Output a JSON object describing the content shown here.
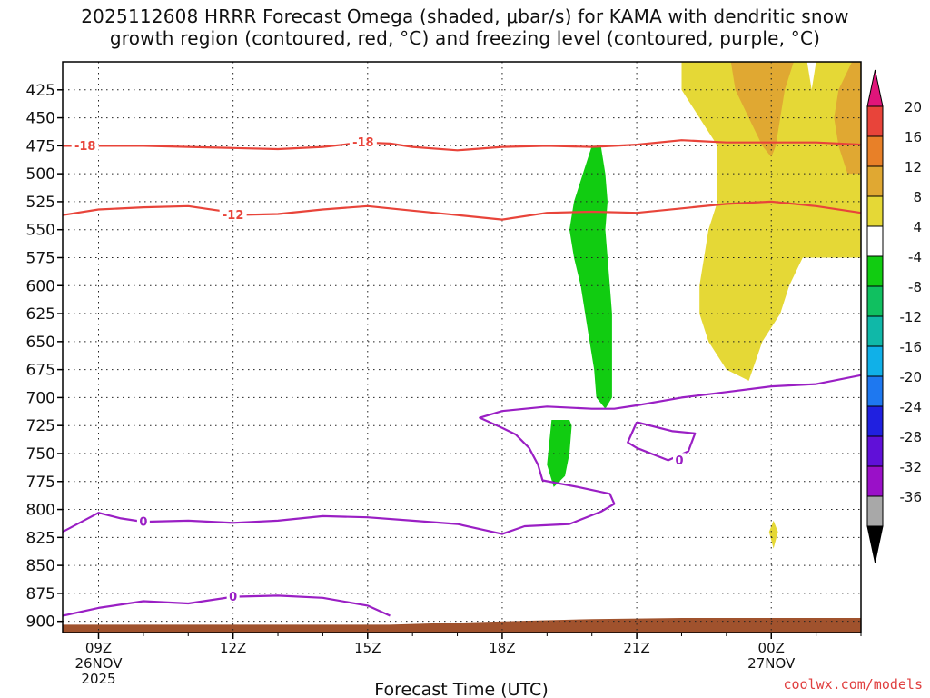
{
  "title_line1": "2025112608 HRRR Forecast Omega (shaded, μbar/s) for KAMA with dendritic snow",
  "title_line2": "growth region (contoured, red, °C) and freezing level (contoured, purple, °C)",
  "credit": "coolwx.com/models",
  "colors": {
    "isotherm": "#e8443a",
    "freezing_level": "#9a1fc4",
    "terrain": "#a0522d",
    "ascent_green": "#11cc11",
    "descent_yellow": "#e5d836",
    "descent_orange": "#e0a832"
  },
  "chart_data": {
    "type": "heatmap",
    "xlabel": "Forecast Time (UTC)",
    "ylabel": "",
    "x_ticks": [
      {
        "hour": 9,
        "label": "09Z",
        "sub": [
          "26NOV",
          "2025"
        ]
      },
      {
        "hour": 12,
        "label": "12Z",
        "sub": []
      },
      {
        "hour": 15,
        "label": "15Z",
        "sub": []
      },
      {
        "hour": 18,
        "label": "18Z",
        "sub": []
      },
      {
        "hour": 21,
        "label": "21Z",
        "sub": []
      },
      {
        "hour": 24,
        "label": "00Z",
        "sub": [
          "27NOV"
        ]
      }
    ],
    "xlim": [
      8.2,
      26.0
    ],
    "ylim": [
      400,
      910
    ],
    "y_ticks": [
      425,
      450,
      475,
      500,
      525,
      550,
      575,
      600,
      625,
      650,
      675,
      700,
      725,
      750,
      775,
      800,
      825,
      850,
      875,
      900
    ],
    "grid": true,
    "colorbar": {
      "boundaries": [
        -36,
        -32,
        -28,
        -24,
        -20,
        -16,
        -12,
        -8,
        -4,
        4,
        8,
        12,
        16,
        20
      ],
      "colors": [
        "#a8a8a8",
        "#9a10c8",
        "#6010d8",
        "#2020e0",
        "#1e78f0",
        "#10b0e8",
        "#10b8a8",
        "#10c060",
        "#11cc11",
        "#ffffff",
        "#e5d836",
        "#e0a832",
        "#e88028",
        "#e8443a"
      ],
      "under_color": "#000000",
      "over_color": "#e0157a"
    },
    "omega_regions": [
      {
        "class": "green",
        "points": [
          [
            20.0,
            475
          ],
          [
            19.8,
            500
          ],
          [
            19.6,
            525
          ],
          [
            19.5,
            550
          ],
          [
            19.6,
            575
          ],
          [
            19.75,
            600
          ],
          [
            19.85,
            625
          ],
          [
            19.95,
            650
          ],
          [
            20.05,
            675
          ],
          [
            20.1,
            700
          ],
          [
            20.3,
            710
          ],
          [
            20.45,
            700
          ],
          [
            20.45,
            675
          ],
          [
            20.45,
            650
          ],
          [
            20.45,
            625
          ],
          [
            20.4,
            600
          ],
          [
            20.35,
            575
          ],
          [
            20.3,
            550
          ],
          [
            20.35,
            525
          ],
          [
            20.3,
            500
          ],
          [
            20.2,
            475
          ]
        ]
      },
      {
        "class": "green",
        "points": [
          [
            19.1,
            720
          ],
          [
            19.05,
            740
          ],
          [
            19.0,
            760
          ],
          [
            19.15,
            780
          ],
          [
            19.4,
            770
          ],
          [
            19.5,
            750
          ],
          [
            19.55,
            725
          ],
          [
            19.5,
            720
          ]
        ]
      },
      {
        "class": "yellow",
        "points": [
          [
            22.0,
            400
          ],
          [
            22.0,
            425
          ],
          [
            22.4,
            450
          ],
          [
            22.8,
            475
          ],
          [
            22.8,
            500
          ],
          [
            22.8,
            525
          ],
          [
            22.6,
            550
          ],
          [
            22.5,
            575
          ],
          [
            22.4,
            600
          ],
          [
            22.4,
            625
          ],
          [
            22.6,
            650
          ],
          [
            23.0,
            675
          ],
          [
            23.5,
            685
          ],
          [
            23.8,
            650
          ],
          [
            24.2,
            625
          ],
          [
            24.4,
            600
          ],
          [
            24.7,
            575
          ],
          [
            25.2,
            575
          ],
          [
            26.0,
            575
          ],
          [
            26.0,
            400
          ],
          [
            25.0,
            400
          ],
          [
            24.9,
            425
          ],
          [
            24.8,
            400
          ]
        ]
      },
      {
        "class": "orange",
        "points": [
          [
            23.1,
            400
          ],
          [
            23.2,
            425
          ],
          [
            23.5,
            450
          ],
          [
            23.8,
            475
          ],
          [
            24.0,
            485
          ],
          [
            24.1,
            475
          ],
          [
            24.2,
            450
          ],
          [
            24.3,
            425
          ],
          [
            24.5,
            400
          ]
        ]
      },
      {
        "class": "orange",
        "points": [
          [
            25.8,
            400
          ],
          [
            25.5,
            425
          ],
          [
            25.4,
            450
          ],
          [
            25.5,
            475
          ],
          [
            25.7,
            500
          ],
          [
            26.0,
            500
          ],
          [
            26.0,
            400
          ]
        ]
      },
      {
        "class": "yellow",
        "points": [
          [
            24.05,
            810
          ],
          [
            23.95,
            820
          ],
          [
            24.05,
            835
          ],
          [
            24.15,
            820
          ]
        ]
      }
    ],
    "isotherms": [
      {
        "label": "-18",
        "label_at": [
          8.7,
          475
        ],
        "label2": "-18",
        "label2_at": [
          14.9,
          472
        ],
        "points": [
          [
            8.2,
            475
          ],
          [
            9.0,
            475
          ],
          [
            10.0,
            475
          ],
          [
            11.0,
            476
          ],
          [
            12.0,
            477
          ],
          [
            13.0,
            478
          ],
          [
            14.0,
            476
          ],
          [
            14.9,
            472
          ],
          [
            15.5,
            473
          ],
          [
            16.0,
            476
          ],
          [
            17.0,
            479
          ],
          [
            18.0,
            476
          ],
          [
            19.0,
            475
          ],
          [
            20.0,
            476
          ],
          [
            21.0,
            474
          ],
          [
            22.0,
            470
          ],
          [
            23.0,
            472
          ],
          [
            24.0,
            472
          ],
          [
            25.0,
            472
          ],
          [
            26.0,
            474
          ]
        ]
      },
      {
        "label": "-12",
        "label_at": [
          12.0,
          537
        ],
        "points": [
          [
            8.2,
            537
          ],
          [
            9.0,
            532
          ],
          [
            10.0,
            530
          ],
          [
            11.0,
            529
          ],
          [
            11.7,
            533
          ],
          [
            12.0,
            537
          ],
          [
            13.0,
            536
          ],
          [
            14.0,
            532
          ],
          [
            15.0,
            529
          ],
          [
            16.0,
            533
          ],
          [
            17.0,
            537
          ],
          [
            18.0,
            541
          ],
          [
            19.0,
            535
          ],
          [
            20.0,
            534
          ],
          [
            21.0,
            535
          ],
          [
            22.0,
            531
          ],
          [
            23.0,
            527
          ],
          [
            24.0,
            525
          ],
          [
            25.0,
            529
          ],
          [
            26.0,
            535
          ]
        ]
      }
    ],
    "freezing_level": [
      {
        "label": "0",
        "label_at": [
          21.95,
          756
        ],
        "points": [
          [
            21.0,
            722
          ],
          [
            21.8,
            730
          ],
          [
            22.3,
            732
          ],
          [
            22.15,
            748
          ],
          [
            21.7,
            756
          ],
          [
            21.0,
            745
          ],
          [
            20.8,
            740
          ],
          [
            21.0,
            722
          ]
        ]
      },
      {
        "label": "0",
        "label_at": [
          10.0,
          811
        ],
        "points": [
          [
            8.2,
            820
          ],
          [
            9.0,
            803
          ],
          [
            9.5,
            808
          ],
          [
            10.0,
            811
          ],
          [
            11.0,
            810
          ],
          [
            12.0,
            812
          ],
          [
            13.0,
            810
          ],
          [
            14.0,
            806
          ],
          [
            15.0,
            807
          ],
          [
            16.0,
            810
          ],
          [
            17.0,
            813
          ],
          [
            18.0,
            822
          ],
          [
            18.5,
            815
          ],
          [
            19.5,
            813
          ],
          [
            20.2,
            802
          ],
          [
            20.5,
            795
          ],
          [
            20.4,
            786
          ],
          [
            19.7,
            780
          ],
          [
            18.9,
            774
          ],
          [
            18.8,
            760
          ],
          [
            18.6,
            745
          ],
          [
            18.3,
            733
          ],
          [
            18.0,
            727
          ],
          [
            17.5,
            718
          ],
          [
            18.0,
            712
          ],
          [
            19.0,
            708
          ],
          [
            20.0,
            710
          ],
          [
            20.5,
            710
          ],
          [
            21.0,
            707
          ],
          [
            22.0,
            700
          ],
          [
            23.0,
            695
          ],
          [
            24.0,
            690
          ],
          [
            25.0,
            688
          ],
          [
            26.0,
            680
          ]
        ]
      },
      {
        "label": "0",
        "label_at": [
          12.0,
          878
        ],
        "points": [
          [
            8.2,
            895
          ],
          [
            9.0,
            888
          ],
          [
            10.0,
            882
          ],
          [
            11.0,
            884
          ],
          [
            12.0,
            878
          ],
          [
            13.0,
            877
          ],
          [
            14.0,
            879
          ],
          [
            15.0,
            886
          ],
          [
            15.5,
            895
          ]
        ]
      }
    ],
    "terrain": [
      [
        8.2,
        903
      ],
      [
        15.5,
        903
      ],
      [
        18.0,
        900
      ],
      [
        20.0,
        898
      ],
      [
        22.0,
        897
      ],
      [
        24.0,
        897
      ],
      [
        26.0,
        897
      ]
    ]
  }
}
